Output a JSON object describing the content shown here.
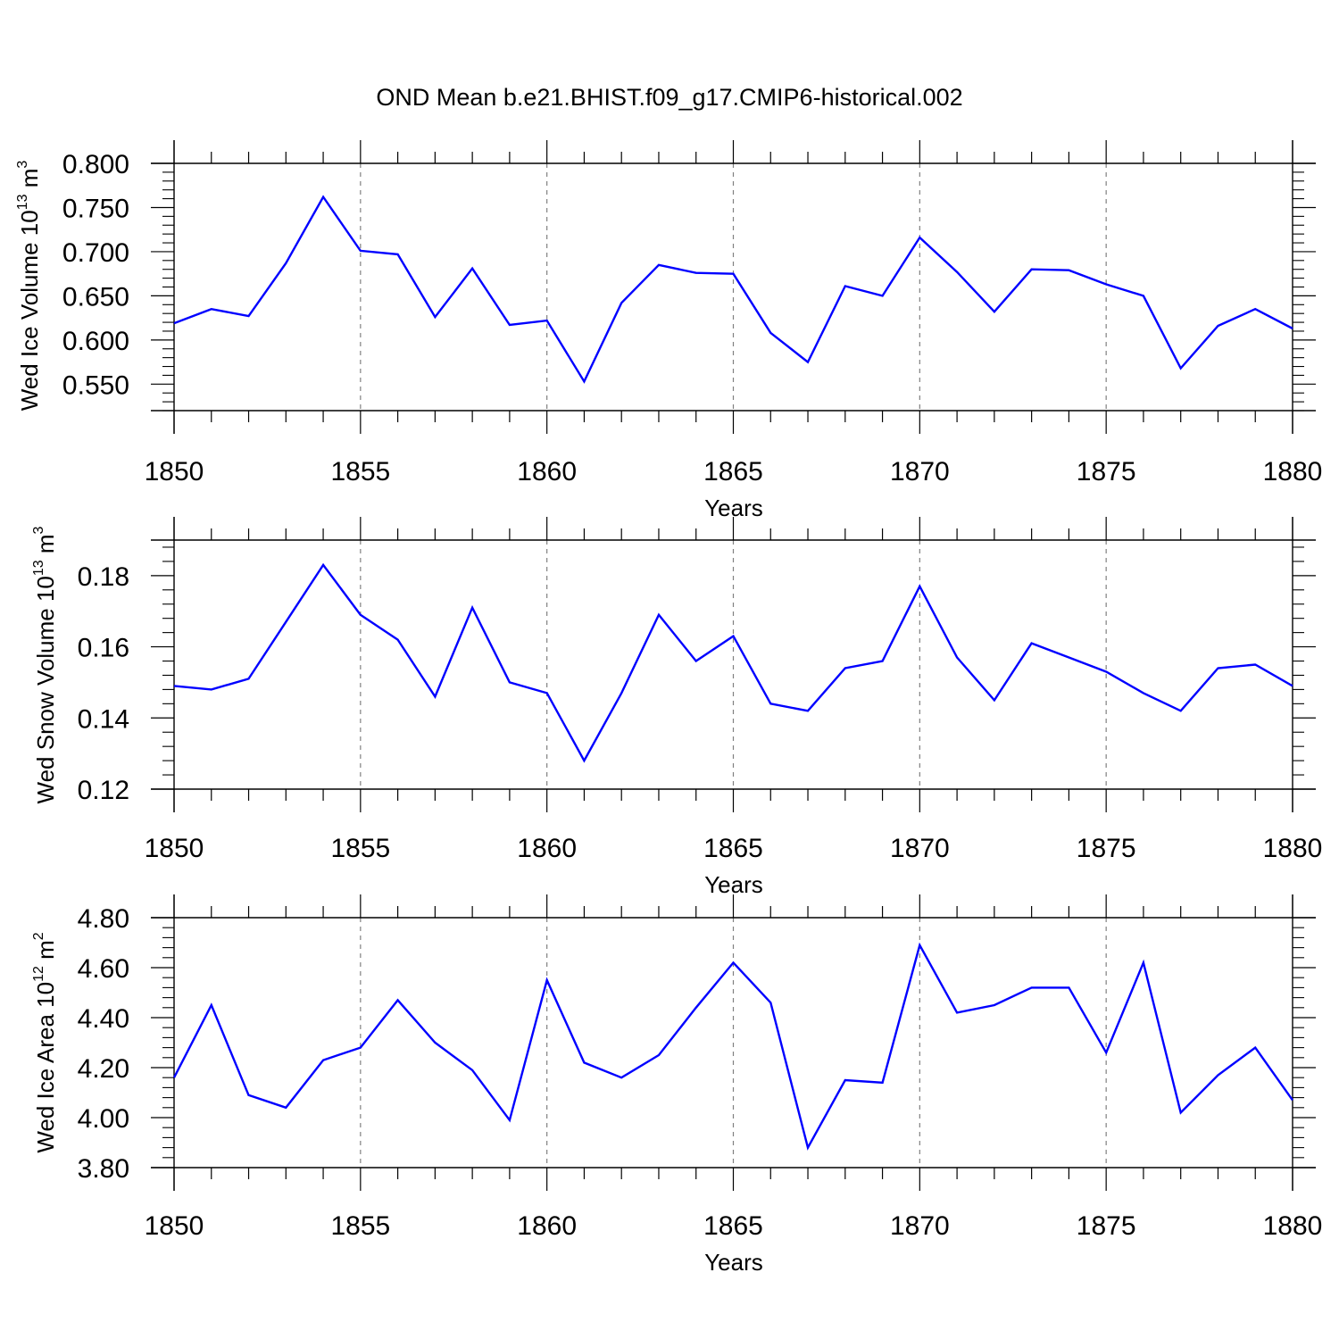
{
  "title": "OND Mean b.e21.BHIST.f09_g17.CMIP6-historical.002",
  "line_color": "#0000ff",
  "gridline_color": "#808080",
  "chart_data": [
    {
      "type": "line",
      "ylabel": {
        "prefix": "Wed Ice Volume 10",
        "exponent": "13",
        "unit": " m",
        "unit_exponent": "3"
      },
      "xlabel": "Years",
      "xlim": [
        1850,
        1880
      ],
      "ylim": [
        0.52,
        0.8
      ],
      "yticks": [
        0.55,
        0.6,
        0.65,
        0.7,
        0.75,
        0.8
      ],
      "ytick_labels": [
        "0.550",
        "0.600",
        "0.650",
        "0.700",
        "0.750",
        "0.800"
      ],
      "xticks": [
        1850,
        1855,
        1860,
        1865,
        1870,
        1875,
        1880
      ],
      "xtick_labels": [
        "1850",
        "1855",
        "1860",
        "1865",
        "1870",
        "1875",
        "1880"
      ],
      "grid": "vertical dashed at 5-year ticks",
      "x": [
        1850,
        1851,
        1852,
        1853,
        1854,
        1855,
        1856,
        1857,
        1858,
        1859,
        1860,
        1861,
        1862,
        1863,
        1864,
        1865,
        1866,
        1867,
        1868,
        1869,
        1870,
        1871,
        1872,
        1873,
        1874,
        1875,
        1876,
        1877,
        1878,
        1879,
        1880
      ],
      "values": [
        0.619,
        0.635,
        0.627,
        0.687,
        0.762,
        0.701,
        0.697,
        0.626,
        0.681,
        0.617,
        0.622,
        0.553,
        0.642,
        0.685,
        0.676,
        0.675,
        0.608,
        0.575,
        0.661,
        0.65,
        0.716,
        0.677,
        0.632,
        0.68,
        0.679,
        0.663,
        0.65,
        0.568,
        0.616,
        0.635,
        0.613
      ]
    },
    {
      "type": "line",
      "ylabel": {
        "prefix": "Wed Snow Volume 10",
        "exponent": "13",
        "unit": " m",
        "unit_exponent": "3"
      },
      "xlabel": "Years",
      "xlim": [
        1850,
        1880
      ],
      "ylim": [
        0.12,
        0.19
      ],
      "yticks": [
        0.12,
        0.14,
        0.16,
        0.18
      ],
      "ytick_labels": [
        "0.12",
        "0.14",
        "0.16",
        "0.18"
      ],
      "xticks": [
        1850,
        1855,
        1860,
        1865,
        1870,
        1875,
        1880
      ],
      "xtick_labels": [
        "1850",
        "1855",
        "1860",
        "1865",
        "1870",
        "1875",
        "1880"
      ],
      "grid": "vertical dashed at 5-year ticks",
      "x": [
        1850,
        1851,
        1852,
        1853,
        1854,
        1855,
        1856,
        1857,
        1858,
        1859,
        1860,
        1861,
        1862,
        1863,
        1864,
        1865,
        1866,
        1867,
        1868,
        1869,
        1870,
        1871,
        1872,
        1873,
        1874,
        1875,
        1876,
        1877,
        1878,
        1879,
        1880
      ],
      "values": [
        0.149,
        0.148,
        0.151,
        0.167,
        0.183,
        0.169,
        0.162,
        0.146,
        0.171,
        0.15,
        0.147,
        0.128,
        0.147,
        0.169,
        0.156,
        0.163,
        0.144,
        0.142,
        0.154,
        0.156,
        0.177,
        0.157,
        0.145,
        0.161,
        0.157,
        0.153,
        0.147,
        0.142,
        0.154,
        0.155,
        0.149
      ]
    },
    {
      "type": "line",
      "ylabel": {
        "prefix": "Wed Ice Area 10",
        "exponent": "12",
        "unit": " m",
        "unit_exponent": "2"
      },
      "xlabel": "Years",
      "xlim": [
        1850,
        1880
      ],
      "ylim": [
        3.8,
        4.8
      ],
      "yticks": [
        3.8,
        4.0,
        4.2,
        4.4,
        4.6,
        4.8
      ],
      "ytick_labels": [
        "3.80",
        "4.00",
        "4.20",
        "4.40",
        "4.60",
        "4.80"
      ],
      "xticks": [
        1850,
        1855,
        1860,
        1865,
        1870,
        1875,
        1880
      ],
      "xtick_labels": [
        "1850",
        "1855",
        "1860",
        "1865",
        "1870",
        "1875",
        "1880"
      ],
      "grid": "vertical dashed at 5-year ticks",
      "x": [
        1850,
        1851,
        1852,
        1853,
        1854,
        1855,
        1856,
        1857,
        1858,
        1859,
        1860,
        1861,
        1862,
        1863,
        1864,
        1865,
        1866,
        1867,
        1868,
        1869,
        1870,
        1871,
        1872,
        1873,
        1874,
        1875,
        1876,
        1877,
        1878,
        1879,
        1880
      ],
      "values": [
        4.16,
        4.45,
        4.09,
        4.04,
        4.23,
        4.28,
        4.47,
        4.3,
        4.19,
        3.99,
        4.55,
        4.22,
        4.16,
        4.25,
        4.44,
        4.62,
        4.46,
        3.88,
        4.15,
        4.14,
        4.69,
        4.42,
        4.45,
        4.52,
        4.52,
        4.26,
        4.62,
        4.02,
        4.17,
        4.28,
        4.07
      ]
    }
  ]
}
